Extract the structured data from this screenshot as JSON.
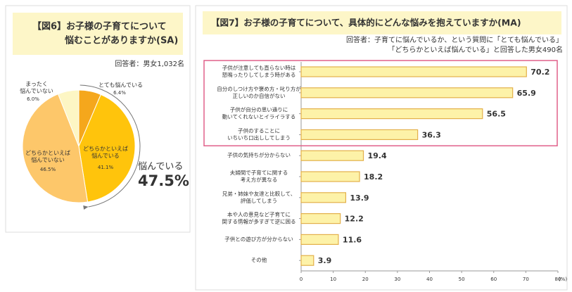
{
  "chart_data": [
    {
      "type": "pie",
      "title": [
        "【図6】お子様の子育てについて",
        "悩むことがありますか(SA)"
      ],
      "subtitle": "回答者：男女1,032名",
      "categories": [
        "とても悩んでいる",
        "どちらかといえば\n悩んでいる",
        "どちらかといえば\n悩んでいない",
        "まったく\n悩んでいない"
      ],
      "values": [
        6.4,
        41.1,
        46.5,
        6.0
      ],
      "value_labels": [
        "6.4%",
        "41.1%",
        "46.5%",
        "6.0%"
      ],
      "colors": [
        "#f5a71c",
        "#ffc40c",
        "#fdc76a",
        "#fdf6c4"
      ],
      "annotation": {
        "text": "悩んでいる",
        "value": 47.5,
        "value_label": "47.5%"
      }
    },
    {
      "type": "barh",
      "title": "【図7】お子様の子育てについて、具体的にどんな悩みを抱えていますか(MA)",
      "subtitle": [
        "回答者：子育てに悩んでいるか、という質問に「とても悩んでいる」",
        "「どちらかといえば悩んでいる」と回答した男女490名"
      ],
      "categories": [
        "子供が注意しても直らない時は\n怒鳴ったりしてしまう時がある",
        "自分のしつけ方や褒め方・叱り方が\n正しいのか自信がない",
        "子供が自分の思い通りに\n動いてくれないとイライラする",
        "子供のすることに\nいちいち口出ししてしまう",
        "子供の気持ちが分からない",
        "夫婦間で子育てに関する\n考え方が異なる",
        "兄弟・姉妹や友達と比較して、\n評価してしまう",
        "本や人の意見など子育てに\n関する情報が多すぎて逆に困る",
        "子供との遊び方が分からない",
        "その他"
      ],
      "values": [
        70.2,
        65.9,
        56.5,
        36.3,
        19.4,
        18.2,
        13.9,
        12.2,
        11.6,
        3.9
      ],
      "color": "#fdf2a8",
      "edgecolor": "#e3b04a",
      "xlim": [
        0,
        80
      ],
      "xticks": [
        0,
        10,
        20,
        30,
        40,
        50,
        60,
        70,
        80
      ],
      "xlabel": "(%)"
    }
  ]
}
